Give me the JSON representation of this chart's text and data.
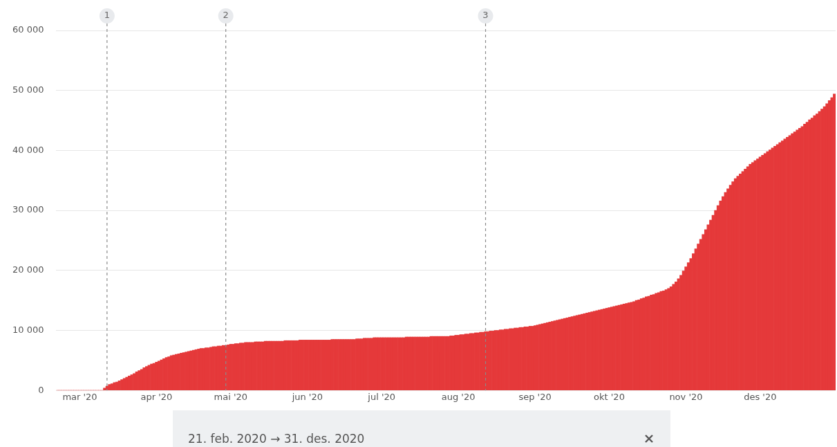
{
  "chart_data": {
    "type": "bar",
    "color": "#e5393a",
    "x": [
      "2020-02-21",
      "2020-02-22",
      "2020-02-23",
      "2020-02-24",
      "2020-02-25",
      "2020-02-26",
      "2020-02-27",
      "2020-02-28",
      "2020-02-29",
      "2020-03-01",
      "2020-03-02",
      "2020-03-03",
      "2020-03-04",
      "2020-03-05",
      "2020-03-06",
      "2020-03-07",
      "2020-03-08",
      "2020-03-09",
      "2020-03-10",
      "2020-03-11",
      "2020-03-12",
      "2020-03-13",
      "2020-03-14",
      "2020-03-15",
      "2020-03-16",
      "2020-03-17",
      "2020-03-18",
      "2020-03-19",
      "2020-03-20",
      "2020-03-21",
      "2020-03-22",
      "2020-03-23",
      "2020-03-24",
      "2020-03-25",
      "2020-03-26",
      "2020-03-27",
      "2020-03-28",
      "2020-03-29",
      "2020-03-30",
      "2020-03-31",
      "2020-04-01",
      "2020-04-02",
      "2020-04-03",
      "2020-04-04",
      "2020-04-05",
      "2020-04-06",
      "2020-04-07",
      "2020-04-08",
      "2020-04-09",
      "2020-04-10",
      "2020-04-11",
      "2020-04-12",
      "2020-04-13",
      "2020-04-14",
      "2020-04-15",
      "2020-04-16",
      "2020-04-17",
      "2020-04-18",
      "2020-04-19",
      "2020-04-20",
      "2020-04-21",
      "2020-04-22",
      "2020-04-23",
      "2020-04-24",
      "2020-04-25",
      "2020-04-26",
      "2020-04-27",
      "2020-04-28",
      "2020-04-29",
      "2020-04-30",
      "2020-05-01",
      "2020-05-02",
      "2020-05-03",
      "2020-05-04",
      "2020-05-05",
      "2020-05-06",
      "2020-05-07",
      "2020-05-08",
      "2020-05-09",
      "2020-05-10",
      "2020-05-11",
      "2020-05-12",
      "2020-05-13",
      "2020-05-14",
      "2020-05-15",
      "2020-05-16",
      "2020-05-17",
      "2020-05-18",
      "2020-05-19",
      "2020-05-20",
      "2020-05-21",
      "2020-05-22",
      "2020-05-23",
      "2020-05-24",
      "2020-05-25",
      "2020-05-26",
      "2020-05-27",
      "2020-05-28",
      "2020-05-29",
      "2020-05-30",
      "2020-05-31",
      "2020-06-01",
      "2020-06-02",
      "2020-06-03",
      "2020-06-04",
      "2020-06-05",
      "2020-06-06",
      "2020-06-07",
      "2020-06-08",
      "2020-06-09",
      "2020-06-10",
      "2020-06-11",
      "2020-06-12",
      "2020-06-13",
      "2020-06-14",
      "2020-06-15",
      "2020-06-16",
      "2020-06-17",
      "2020-06-18",
      "2020-06-19",
      "2020-06-20",
      "2020-06-21",
      "2020-06-22",
      "2020-06-23",
      "2020-06-24",
      "2020-06-25",
      "2020-06-26",
      "2020-06-27",
      "2020-06-28",
      "2020-06-29",
      "2020-06-30",
      "2020-07-01",
      "2020-07-02",
      "2020-07-03",
      "2020-07-04",
      "2020-07-05",
      "2020-07-06",
      "2020-07-07",
      "2020-07-08",
      "2020-07-09",
      "2020-07-10",
      "2020-07-11",
      "2020-07-12",
      "2020-07-13",
      "2020-07-14",
      "2020-07-15",
      "2020-07-16",
      "2020-07-17",
      "2020-07-18",
      "2020-07-19",
      "2020-07-20",
      "2020-07-21",
      "2020-07-22",
      "2020-07-23",
      "2020-07-24",
      "2020-07-25",
      "2020-07-26",
      "2020-07-27",
      "2020-07-28",
      "2020-07-29",
      "2020-07-30",
      "2020-07-31",
      "2020-08-01",
      "2020-08-02",
      "2020-08-03",
      "2020-08-04",
      "2020-08-05",
      "2020-08-06",
      "2020-08-07",
      "2020-08-08",
      "2020-08-09",
      "2020-08-10",
      "2020-08-11",
      "2020-08-12",
      "2020-08-13",
      "2020-08-14",
      "2020-08-15",
      "2020-08-16",
      "2020-08-17",
      "2020-08-18",
      "2020-08-19",
      "2020-08-20",
      "2020-08-21",
      "2020-08-22",
      "2020-08-23",
      "2020-08-24",
      "2020-08-25",
      "2020-08-26",
      "2020-08-27",
      "2020-08-28",
      "2020-08-29",
      "2020-08-30",
      "2020-08-31",
      "2020-09-01",
      "2020-09-02",
      "2020-09-03",
      "2020-09-04",
      "2020-09-05",
      "2020-09-06",
      "2020-09-07",
      "2020-09-08",
      "2020-09-09",
      "2020-09-10",
      "2020-09-11",
      "2020-09-12",
      "2020-09-13",
      "2020-09-14",
      "2020-09-15",
      "2020-09-16",
      "2020-09-17",
      "2020-09-18",
      "2020-09-19",
      "2020-09-20",
      "2020-09-21",
      "2020-09-22",
      "2020-09-23",
      "2020-09-24",
      "2020-09-25",
      "2020-09-26",
      "2020-09-27",
      "2020-09-28",
      "2020-09-29",
      "2020-09-30",
      "2020-10-01",
      "2020-10-02",
      "2020-10-03",
      "2020-10-04",
      "2020-10-05",
      "2020-10-06",
      "2020-10-07",
      "2020-10-08",
      "2020-10-09",
      "2020-10-10",
      "2020-10-11",
      "2020-10-12",
      "2020-10-13",
      "2020-10-14",
      "2020-10-15",
      "2020-10-16",
      "2020-10-17",
      "2020-10-18",
      "2020-10-19",
      "2020-10-20",
      "2020-10-21",
      "2020-10-22",
      "2020-10-23",
      "2020-10-24",
      "2020-10-25",
      "2020-10-26",
      "2020-10-27",
      "2020-10-28",
      "2020-10-29",
      "2020-10-30",
      "2020-10-31",
      "2020-11-01",
      "2020-11-02",
      "2020-11-03",
      "2020-11-04",
      "2020-11-05",
      "2020-11-06",
      "2020-11-07",
      "2020-11-08",
      "2020-11-09",
      "2020-11-10",
      "2020-11-11",
      "2020-11-12",
      "2020-11-13",
      "2020-11-14",
      "2020-11-15",
      "2020-11-16",
      "2020-11-17",
      "2020-11-18",
      "2020-11-19",
      "2020-11-20",
      "2020-11-21",
      "2020-11-22",
      "2020-11-23",
      "2020-11-24",
      "2020-11-25",
      "2020-11-26",
      "2020-11-27",
      "2020-11-28",
      "2020-11-29",
      "2020-11-30",
      "2020-12-01",
      "2020-12-02",
      "2020-12-03",
      "2020-12-04",
      "2020-12-05",
      "2020-12-06",
      "2020-12-07",
      "2020-12-08",
      "2020-12-09",
      "2020-12-10",
      "2020-12-11",
      "2020-12-12",
      "2020-12-13",
      "2020-12-14",
      "2020-12-15",
      "2020-12-16",
      "2020-12-17",
      "2020-12-18",
      "2020-12-19",
      "2020-12-20",
      "2020-12-21",
      "2020-12-22",
      "2020-12-23",
      "2020-12-24",
      "2020-12-25",
      "2020-12-26",
      "2020-12-27",
      "2020-12-28",
      "2020-12-29",
      "2020-12-30",
      "2020-12-31"
    ],
    "values": [
      0,
      0,
      0,
      0,
      0,
      0,
      0,
      0,
      0,
      0,
      0,
      0,
      0,
      0,
      0,
      0,
      0,
      0,
      0,
      400,
      700,
      1000,
      1100,
      1300,
      1400,
      1600,
      1800,
      2000,
      2200,
      2400,
      2600,
      2800,
      3100,
      3300,
      3500,
      3800,
      4000,
      4200,
      4400,
      4500,
      4700,
      4900,
      5100,
      5300,
      5500,
      5600,
      5800,
      5900,
      6000,
      6100,
      6200,
      6300,
      6400,
      6500,
      6600,
      6700,
      6800,
      6900,
      7000,
      7000,
      7100,
      7100,
      7200,
      7300,
      7300,
      7400,
      7400,
      7500,
      7500,
      7600,
      7700,
      7700,
      7800,
      7800,
      7900,
      7900,
      8000,
      8000,
      8000,
      8000,
      8100,
      8100,
      8100,
      8100,
      8200,
      8200,
      8200,
      8200,
      8200,
      8200,
      8200,
      8200,
      8300,
      8300,
      8300,
      8300,
      8300,
      8300,
      8400,
      8400,
      8400,
      8400,
      8400,
      8400,
      8400,
      8400,
      8400,
      8400,
      8400,
      8400,
      8400,
      8500,
      8500,
      8500,
      8500,
      8500,
      8500,
      8500,
      8500,
      8500,
      8500,
      8600,
      8600,
      8600,
      8700,
      8700,
      8700,
      8700,
      8800,
      8800,
      8800,
      8800,
      8800,
      8800,
      8800,
      8800,
      8800,
      8800,
      8800,
      8800,
      8800,
      8900,
      8900,
      8900,
      8900,
      8900,
      8900,
      8900,
      8900,
      8900,
      8900,
      9000,
      9000,
      9000,
      9000,
      9000,
      9000,
      9000,
      9000,
      9100,
      9100,
      9200,
      9200,
      9300,
      9300,
      9400,
      9400,
      9500,
      9500,
      9600,
      9600,
      9700,
      9700,
      9800,
      9800,
      9900,
      9900,
      10000,
      10000,
      10100,
      10100,
      10200,
      10200,
      10300,
      10300,
      10400,
      10400,
      10500,
      10500,
      10600,
      10600,
      10700,
      10700,
      10800,
      10900,
      11000,
      11100,
      11200,
      11300,
      11400,
      11500,
      11600,
      11700,
      11800,
      11900,
      12000,
      12100,
      12200,
      12300,
      12400,
      12500,
      12600,
      12700,
      12800,
      12900,
      13000,
      13100,
      13200,
      13300,
      13400,
      13500,
      13600,
      13700,
      13800,
      13900,
      14000,
      14100,
      14200,
      14300,
      14400,
      14500,
      14600,
      14700,
      14800,
      15000,
      15100,
      15300,
      15400,
      15600,
      15700,
      15900,
      16000,
      16200,
      16300,
      16500,
      16600,
      16800,
      17000,
      17300,
      17700,
      18100,
      18600,
      19200,
      19900,
      20600,
      21300,
      22000,
      22800,
      23600,
      24400,
      25200,
      26000,
      26800,
      27600,
      28400,
      29200,
      30000,
      30800,
      31600,
      32300,
      33000,
      33600,
      34200,
      34800,
      35300,
      35700,
      36100,
      36500,
      36900,
      37300,
      37700,
      38000,
      38300,
      38600,
      38900,
      39200,
      39500,
      39800,
      40100,
      40400,
      40700,
      41000,
      41300,
      41600,
      41900,
      42200,
      42500,
      42800,
      43100,
      43400,
      43700,
      44000,
      44400,
      44700,
      45100,
      45400,
      45800,
      46100,
      46500,
      46900,
      47300,
      47800,
      48300,
      48800,
      49400
    ],
    "xlim": [
      "2020-02-21",
      "2020-12-31"
    ],
    "xticks": [
      {
        "value": "2020-03-01",
        "label": "mar '20"
      },
      {
        "value": "2020-04-01",
        "label": "apr '20"
      },
      {
        "value": "2020-05-01",
        "label": "mai '20"
      },
      {
        "value": "2020-06-01",
        "label": "jun '20"
      },
      {
        "value": "2020-07-01",
        "label": "jul '20"
      },
      {
        "value": "2020-08-01",
        "label": "aug '20"
      },
      {
        "value": "2020-09-01",
        "label": "sep '20"
      },
      {
        "value": "2020-10-01",
        "label": "okt '20"
      },
      {
        "value": "2020-11-01",
        "label": "nov '20"
      },
      {
        "value": "2020-12-01",
        "label": "des '20"
      }
    ],
    "ylim": [
      0,
      60000
    ],
    "yticks": [
      {
        "value": 0,
        "label": "0"
      },
      {
        "value": 10000,
        "label": "10 000"
      },
      {
        "value": 20000,
        "label": "20 000"
      },
      {
        "value": 30000,
        "label": "30 000"
      },
      {
        "value": 40000,
        "label": "40 000"
      },
      {
        "value": 50000,
        "label": "50 000"
      },
      {
        "value": 60000,
        "label": "60 000"
      }
    ],
    "grid": "y",
    "legend": false,
    "ref_lines": [
      {
        "axis": "x",
        "value": "2020-03-12",
        "label": "1",
        "color": "#8a8a8a",
        "line_style": "dashed"
      },
      {
        "axis": "x",
        "value": "2020-04-29",
        "label": "2",
        "color": "#8a8a8a",
        "line_style": "dashed"
      },
      {
        "axis": "x",
        "value": "2020-08-12",
        "label": "3",
        "color": "#8a8a8a",
        "line_style": "dashed"
      }
    ],
    "annotations": [
      "21. feb. 2020 → 31. des. 2020"
    ]
  }
}
